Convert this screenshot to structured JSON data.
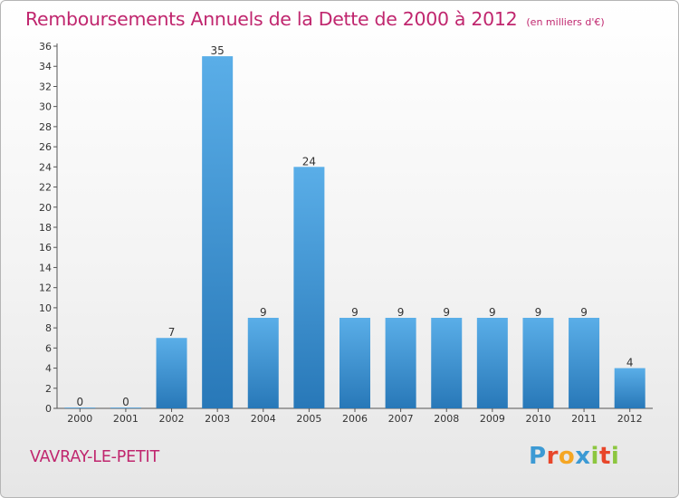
{
  "colors": {
    "accent": "#c0266e",
    "bar_light": "#5aaee8",
    "bar_dark": "#2878b8"
  },
  "header": {
    "title": "Remboursements Annuels de la Dette de 2000 à 2012",
    "subtitle": "(en milliers d'€)"
  },
  "footer": {
    "commune": "VAVRAY-LE-PETIT",
    "logo_letters": [
      "P",
      "r",
      "o",
      "x",
      "i",
      "t",
      "i"
    ],
    "logo_colors": [
      "#3c9ad4",
      "#e8462a",
      "#f5a623",
      "#3c9ad4",
      "#8cc63f",
      "#e8462a",
      "#8cc63f"
    ]
  },
  "chart_data": {
    "type": "bar",
    "categories": [
      "2000",
      "2001",
      "2002",
      "2003",
      "2004",
      "2005",
      "2006",
      "2007",
      "2008",
      "2009",
      "2010",
      "2011",
      "2012"
    ],
    "values": [
      0,
      0,
      7,
      35,
      9,
      24,
      9,
      9,
      9,
      9,
      9,
      9,
      4
    ],
    "title": "Remboursements Annuels de la Dette de 2000 à 2012",
    "subtitle": "(en milliers d'€)",
    "xlabel": "",
    "ylabel": "",
    "ylim": [
      0,
      36
    ],
    "yticks": [
      0,
      2,
      4,
      6,
      8,
      10,
      12,
      14,
      16,
      18,
      20,
      22,
      24,
      26,
      28,
      30,
      32,
      34,
      36
    ],
    "grid": false,
    "legend": "none"
  }
}
